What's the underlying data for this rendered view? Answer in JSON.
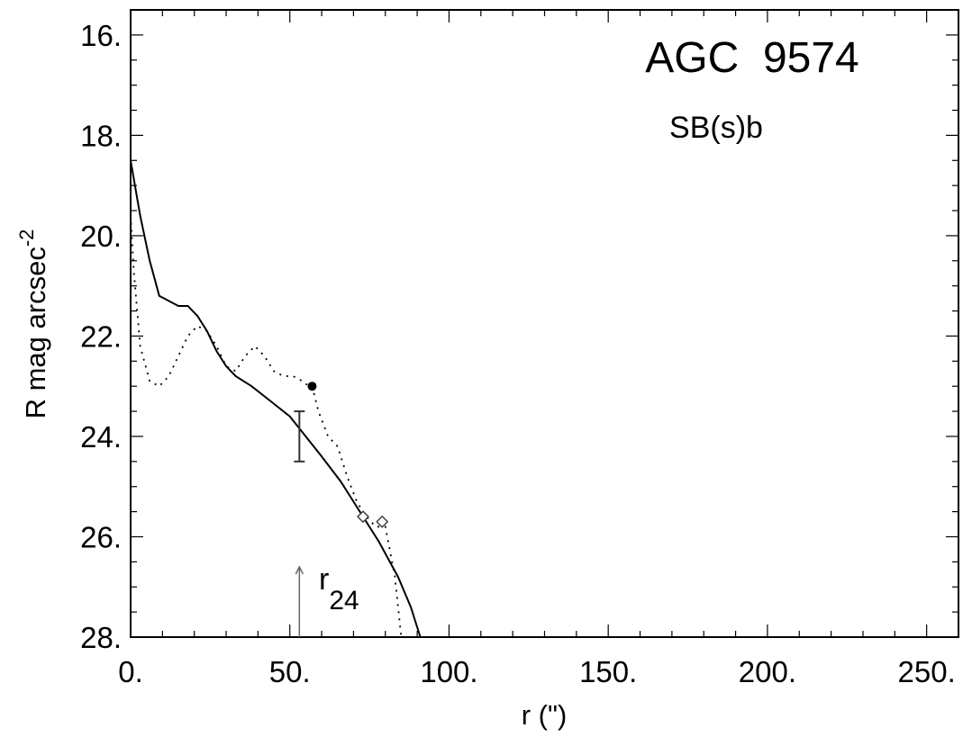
{
  "chart_data": {
    "type": "line",
    "title": "AGC  9574",
    "subtitle": "SB(s)b",
    "xlabel": "r (\")",
    "ylabel_main": "R mag arcsec",
    "ylabel_sup": "-2",
    "xlim": [
      0,
      260
    ],
    "ylim": [
      28,
      15.5
    ],
    "y_inverted": true,
    "grid": false,
    "x_ticks": [
      0,
      50,
      100,
      150,
      200,
      250
    ],
    "x_tick_labels": [
      "0.",
      "50.",
      "100.",
      "150.",
      "200.",
      "250."
    ],
    "x_minor_step": 10,
    "y_ticks": [
      16,
      18,
      20,
      22,
      24,
      26,
      28
    ],
    "y_tick_labels": [
      "16.",
      "18.",
      "20.",
      "22.",
      "24.",
      "26.",
      "28."
    ],
    "y_minor_step": 0.5,
    "series": [
      {
        "style": "solid",
        "x": [
          0,
          3,
          6,
          9,
          12,
          15,
          18,
          21,
          24,
          27,
          30,
          33,
          38,
          44,
          50,
          55,
          60,
          66,
          72,
          78,
          84,
          88,
          91
        ],
        "y": [
          18.5,
          19.6,
          20.5,
          21.2,
          21.3,
          21.4,
          21.4,
          21.6,
          21.9,
          22.3,
          22.6,
          22.8,
          23.0,
          23.3,
          23.6,
          24.0,
          24.4,
          24.9,
          25.5,
          26.1,
          26.8,
          27.4,
          28.0
        ]
      },
      {
        "style": "dotted",
        "x": [
          0,
          1,
          3,
          6,
          9,
          12,
          15,
          18,
          21,
          24,
          27,
          30,
          33,
          36,
          39,
          42,
          45,
          48,
          51,
          54,
          56,
          57,
          59,
          62,
          65,
          68,
          71,
          74,
          77,
          80,
          83,
          85
        ],
        "y": [
          19.6,
          20.7,
          22.2,
          22.9,
          23.0,
          22.8,
          22.4,
          22.0,
          21.8,
          21.9,
          22.2,
          22.6,
          22.7,
          22.4,
          22.2,
          22.4,
          22.7,
          22.8,
          22.8,
          22.9,
          23.0,
          23.0,
          23.5,
          24.0,
          24.2,
          24.8,
          25.3,
          25.6,
          25.8,
          25.8,
          26.8,
          28.0
        ]
      }
    ],
    "markers": [
      {
        "shape": "filled-circle",
        "x": 57,
        "y": 23.0
      },
      {
        "shape": "open-diamond",
        "x": 73,
        "y": 25.6
      },
      {
        "shape": "open-diamond",
        "x": 79,
        "y": 25.7
      }
    ],
    "error_bar": {
      "x": 53,
      "y_low": 23.5,
      "y_high": 24.5
    },
    "r24_arrow": {
      "x": 53,
      "y_from": 28,
      "y_to": 26.6
    },
    "annotation_main": "r",
    "annotation_sub": "24"
  }
}
